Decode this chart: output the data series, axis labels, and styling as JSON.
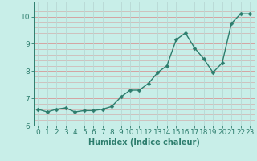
{
  "x": [
    0,
    1,
    2,
    3,
    4,
    5,
    6,
    7,
    8,
    9,
    10,
    11,
    12,
    13,
    14,
    15,
    16,
    17,
    18,
    19,
    20,
    21,
    22,
    23
  ],
  "y": [
    6.6,
    6.5,
    6.6,
    6.65,
    6.5,
    6.55,
    6.55,
    6.6,
    6.7,
    7.05,
    7.3,
    7.3,
    7.55,
    7.95,
    8.2,
    9.15,
    9.4,
    8.85,
    8.45,
    7.95,
    8.3,
    9.75,
    10.1,
    10.1
  ],
  "line_color": "#2d7d6d",
  "marker": "D",
  "marker_size": 2.5,
  "bg_color": "#c8eee8",
  "grid_color_h": "#d4a0a0",
  "grid_color_v": "#b8d8d4",
  "xlabel": "Humidex (Indice chaleur)",
  "xlim": [
    -0.5,
    23.5
  ],
  "ylim": [
    6.0,
    10.55
  ],
  "xticks": [
    0,
    1,
    2,
    3,
    4,
    5,
    6,
    7,
    8,
    9,
    10,
    11,
    12,
    13,
    14,
    15,
    16,
    17,
    18,
    19,
    20,
    21,
    22,
    23
  ],
  "yticks": [
    6,
    7,
    8,
    9,
    10
  ],
  "xlabel_fontsize": 7,
  "tick_fontsize": 6.5,
  "line_width": 1.0
}
